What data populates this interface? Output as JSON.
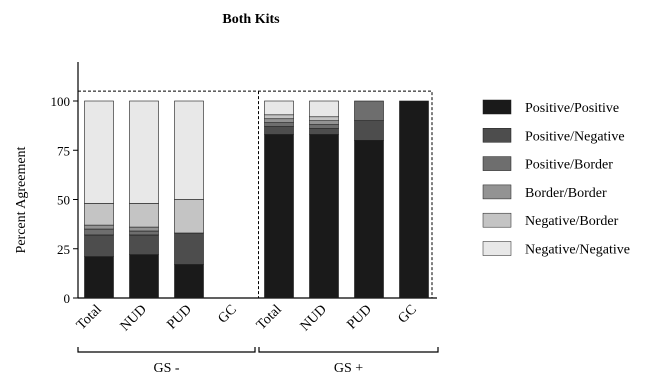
{
  "chart_data": {
    "type": "bar",
    "stacked": true,
    "title": "Both Kits",
    "ylabel": "Percent Agreement",
    "xlabel": "",
    "ylim": [
      0,
      100
    ],
    "yticks": [
      0,
      25,
      50,
      75,
      100
    ],
    "categories": [
      "Total",
      "NUD",
      "PUD",
      "GC",
      "Total",
      "NUD",
      "PUD",
      "GC"
    ],
    "groups": [
      {
        "label": "GS -",
        "categories": [
          0,
          1,
          2,
          3
        ]
      },
      {
        "label": "GS +",
        "categories": [
          4,
          5,
          6,
          7
        ]
      }
    ],
    "series": [
      {
        "name": "Positive/Positive",
        "color": "#1a1a1a",
        "values": [
          21,
          22,
          17,
          0,
          83,
          83,
          80,
          100
        ]
      },
      {
        "name": "Positive/Negative",
        "color": "#4d4d4d",
        "values": [
          11,
          10,
          16,
          0,
          4,
          3,
          10,
          0
        ]
      },
      {
        "name": "Positive/Border",
        "color": "#6e6e6e",
        "values": [
          3,
          2,
          0,
          0,
          2,
          2,
          10,
          0
        ]
      },
      {
        "name": "Border/Border",
        "color": "#939393",
        "values": [
          2,
          2,
          0,
          0,
          2,
          2,
          0,
          0
        ]
      },
      {
        "name": "Negative/Border",
        "color": "#c4c4c4",
        "values": [
          11,
          12,
          17,
          0,
          2,
          2,
          0,
          0
        ]
      },
      {
        "name": "Negative/Negative",
        "color": "#e8e8e8",
        "values": [
          52,
          52,
          50,
          0,
          7,
          8,
          0,
          0
        ]
      }
    ],
    "legend_position": "right",
    "grid": false
  }
}
